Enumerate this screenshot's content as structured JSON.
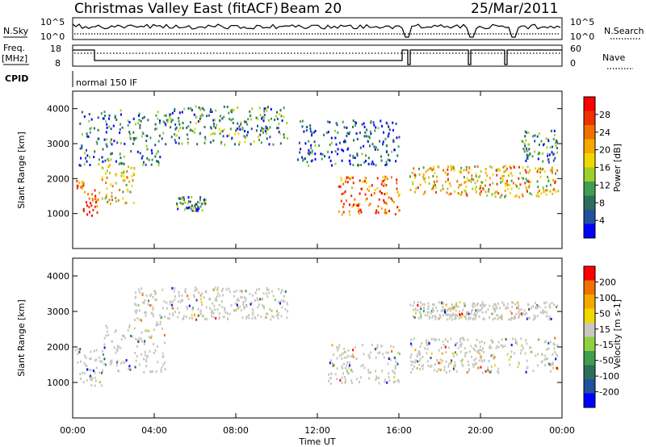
{
  "header": {
    "title": "Christmas Valley East (fitACF)",
    "beam": "Beam 20",
    "date": "25/Mar/2011"
  },
  "top_panels": {
    "nsky_label": "N.Sky",
    "nsky_ticks": [
      "10^5",
      "10^0"
    ],
    "nsearch_label": "N.Search",
    "freq_label_1": "Freq.",
    "freq_label_2": "[MHz]",
    "freq_ticks": [
      "18",
      "8"
    ],
    "nave_label": "Nave",
    "nave_ticks": [
      "60",
      "0"
    ],
    "cpid_label": "CPID",
    "cpid_value": "normal 150 IF"
  },
  "colors": {
    "power_scale": [
      "#0000ff",
      "#2050a0",
      "#2d6e5a",
      "#3f9e50",
      "#9ccf2a",
      "#f0d800",
      "#f5a800",
      "#f07000",
      "#f03000",
      "#ff0000"
    ],
    "velocity_scale": [
      "#0000ff",
      "#2050a0",
      "#2d6e5a",
      "#3f9e50",
      "#8ed040",
      "#c8c8c0",
      "#f0d800",
      "#f5a800",
      "#f07000",
      "#ff0000"
    ],
    "ground_scatter": "#c8c8c0"
  },
  "chart_data": [
    {
      "type": "heatmap",
      "name": "power",
      "ylabel": "Slant Range [km]",
      "ylim": [
        0,
        4500
      ],
      "yticks": [
        "1000",
        "2000",
        "3000",
        "4000"
      ],
      "xticks": [
        "00:00",
        "04:00",
        "08:00",
        "12:00",
        "16:00",
        "20:00",
        "00:00"
      ],
      "colorbar_label": "Power [dB]",
      "colorbar_ticks": [
        "4",
        "8",
        "12",
        "16",
        "20",
        "24",
        "28"
      ],
      "bands": [
        {
          "t0": 0.1,
          "t1": 0.5,
          "r0": 1700,
          "r1": 2000,
          "level": 0.7
        },
        {
          "t0": 0.5,
          "t1": 1.2,
          "r0": 900,
          "r1": 1700,
          "level": 0.85
        },
        {
          "t0": 1.2,
          "t1": 3.0,
          "r0": 1300,
          "r1": 2600,
          "level": 0.55
        },
        {
          "t0": 0.3,
          "t1": 4.5,
          "r0": 2400,
          "r1": 4000,
          "level": 0.25
        },
        {
          "t0": 4.5,
          "t1": 10.5,
          "r0": 3000,
          "r1": 4100,
          "level": 0.3
        },
        {
          "t0": 11.0,
          "t1": 16.0,
          "r0": 2400,
          "r1": 3700,
          "level": 0.2
        },
        {
          "t0": 13.0,
          "t1": 16.0,
          "r0": 1000,
          "r1": 2100,
          "level": 0.75
        },
        {
          "t0": 16.5,
          "t1": 23.8,
          "r0": 1500,
          "r1": 2400,
          "level": 0.6
        },
        {
          "t0": 22.0,
          "t1": 23.8,
          "r0": 2500,
          "r1": 3400,
          "level": 0.25
        },
        {
          "t0": 5.0,
          "t1": 6.5,
          "r0": 1100,
          "r1": 1500,
          "level": 0.3
        }
      ]
    },
    {
      "type": "heatmap",
      "name": "velocity",
      "ylabel": "Slant Range [km]",
      "ylim": [
        0,
        4500
      ],
      "yticks": [
        "1000",
        "2000",
        "3000",
        "4000"
      ],
      "xticks": [
        "00:00",
        "04:00",
        "08:00",
        "12:00",
        "16:00",
        "20:00",
        "00:00"
      ],
      "xlabel": "Time UT",
      "colorbar_label": "Velocity [m s-1]",
      "colorbar_ticks": [
        "200",
        "100",
        "50",
        "15",
        "-15",
        "-50",
        "-100",
        "-200"
      ],
      "bands": [
        {
          "t0": 0.1,
          "t1": 1.5,
          "r0": 900,
          "r1": 2000,
          "level": 0.5
        },
        {
          "t0": 1.5,
          "t1": 4.5,
          "r0": 1300,
          "r1": 2800,
          "level": 0.5
        },
        {
          "t0": 3.0,
          "t1": 10.5,
          "r0": 2800,
          "r1": 3700,
          "level": 0.5
        },
        {
          "t0": 12.5,
          "t1": 16.0,
          "r0": 1000,
          "r1": 2100,
          "level": 0.5
        },
        {
          "t0": 16.5,
          "t1": 23.8,
          "r0": 1300,
          "r1": 2300,
          "level": 0.5
        },
        {
          "t0": 16.5,
          "t1": 23.8,
          "r0": 2800,
          "r1": 3300,
          "level": 0.5
        }
      ]
    }
  ]
}
